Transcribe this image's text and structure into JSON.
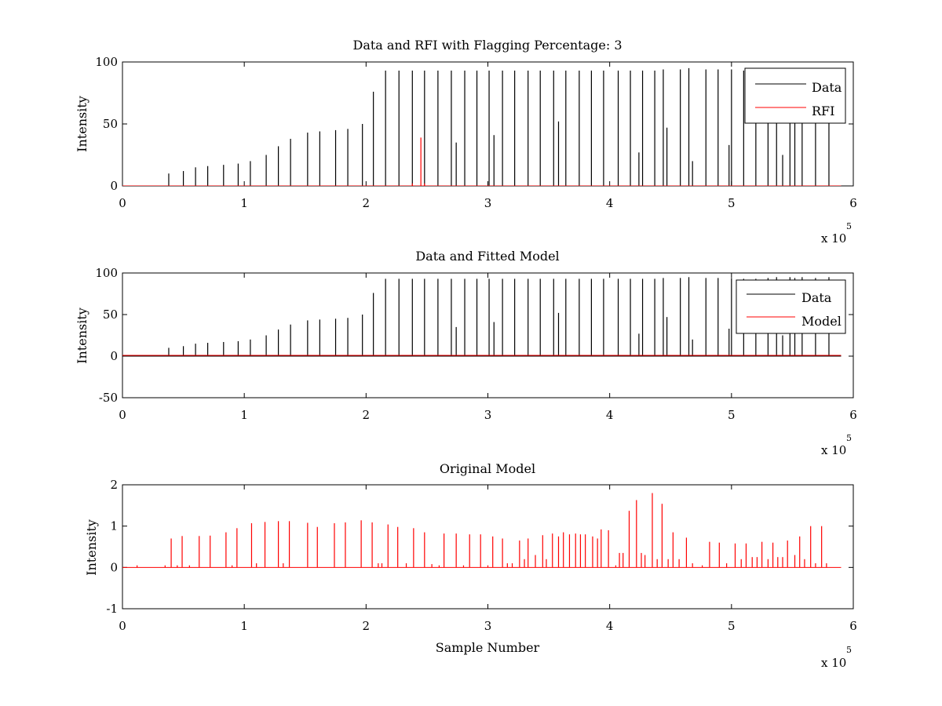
{
  "figure": {
    "background": "#ffffff",
    "panels": [
      "top",
      "middle",
      "bottom"
    ]
  },
  "colors": {
    "data": "#000000",
    "rfi": "#ff0000",
    "model": "#ff0000",
    "original": "#ff0000"
  },
  "panels": {
    "top": {
      "title": "Data and RFI with Flagging Percentage: 3",
      "ylabel": "Intensity",
      "xlabel": "",
      "exponent_base": "x 10",
      "exponent_power": "5",
      "legend": [
        "Data",
        "RFI"
      ]
    },
    "middle": {
      "title": "Data and Fitted Model",
      "ylabel": "Intensity",
      "xlabel": "",
      "exponent_base": "x 10",
      "exponent_power": "5",
      "legend": [
        "Data",
        "Model"
      ]
    },
    "bottom": {
      "title": "Original Model",
      "ylabel": "Intensity",
      "xlabel": "Sample Number",
      "exponent_base": "x 10",
      "exponent_power": "5",
      "legend": []
    }
  },
  "chart_data": [
    {
      "type": "line",
      "title": "Data and RFI with Flagging Percentage: 3",
      "xlabel": "",
      "ylabel": "Intensity",
      "x_multiplier": "x 10^5",
      "xlim": [
        0,
        6
      ],
      "ylim": [
        0,
        100
      ],
      "xticks": [
        "0",
        "1",
        "2",
        "3",
        "4",
        "5",
        "6"
      ],
      "yticks": [
        "0",
        "50",
        "100"
      ],
      "legend": "top-right",
      "series": [
        {
          "name": "Data",
          "kind": "spikes",
          "baseline": 0,
          "x": [
            0.38,
            0.5,
            0.6,
            0.7,
            0.83,
            0.95,
            1.05,
            1.18,
            1.28,
            1.38,
            1.52,
            1.62,
            1.75,
            1.85,
            1.97,
            2.06,
            2.16,
            2.27,
            2.38,
            2.48,
            2.59,
            2.7,
            2.74,
            2.81,
            2.91,
            3.01,
            3.05,
            3.12,
            3.22,
            3.33,
            3.43,
            3.54,
            3.58,
            3.64,
            3.75,
            3.85,
            3.95,
            4.07,
            4.17,
            4.24,
            4.27,
            4.37,
            4.44,
            4.47,
            4.58,
            4.65,
            4.68,
            4.79,
            4.89,
            4.98,
            5.0,
            5.1,
            5.2,
            5.3,
            5.37,
            5.42,
            5.48,
            5.52,
            5.58,
            5.69,
            5.8
          ],
          "y": [
            10,
            12,
            15,
            16,
            17,
            18,
            20,
            25,
            32,
            38,
            43,
            44,
            45,
            46,
            50,
            76,
            93,
            93,
            93,
            93,
            93,
            93,
            35,
            93,
            93,
            93,
            41,
            93,
            93,
            93,
            93,
            93,
            52,
            93,
            93,
            93,
            93,
            93,
            93,
            27,
            93,
            93,
            94,
            47,
            94,
            95,
            20,
            94,
            94,
            33,
            94,
            93,
            93,
            94,
            95,
            25,
            95,
            94,
            95,
            94,
            95
          ]
        },
        {
          "name": "RFI",
          "kind": "spikes",
          "baseline": 0,
          "x": [
            2.38,
            2.45,
            2.48
          ],
          "y": [
            2,
            39,
            2
          ]
        }
      ]
    },
    {
      "type": "line",
      "title": "Data and Fitted Model",
      "xlabel": "",
      "ylabel": "Intensity",
      "x_multiplier": "x 10^5",
      "xlim": [
        0,
        6
      ],
      "ylim": [
        -50,
        100
      ],
      "xticks": [
        "0",
        "1",
        "2",
        "3",
        "4",
        "5",
        "6"
      ],
      "yticks": [
        "-50",
        "0",
        "50",
        "100"
      ],
      "legend": "top-right",
      "series": [
        {
          "name": "Data",
          "kind": "spikes",
          "baseline": 0,
          "x": [
            0.38,
            0.5,
            0.6,
            0.7,
            0.83,
            0.95,
            1.05,
            1.18,
            1.28,
            1.38,
            1.52,
            1.62,
            1.75,
            1.85,
            1.97,
            2.06,
            2.16,
            2.27,
            2.38,
            2.48,
            2.59,
            2.7,
            2.74,
            2.81,
            2.91,
            3.01,
            3.05,
            3.12,
            3.22,
            3.33,
            3.43,
            3.54,
            3.58,
            3.64,
            3.75,
            3.85,
            3.95,
            4.07,
            4.17,
            4.24,
            4.27,
            4.37,
            4.44,
            4.47,
            4.58,
            4.65,
            4.68,
            4.79,
            4.89,
            4.98,
            5.0,
            5.1,
            5.2,
            5.3,
            5.37,
            5.42,
            5.48,
            5.52,
            5.58,
            5.69,
            5.8
          ],
          "y": [
            10,
            12,
            15,
            16,
            17,
            18,
            20,
            25,
            32,
            38,
            43,
            44,
            45,
            46,
            50,
            76,
            93,
            93,
            93,
            93,
            93,
            93,
            35,
            93,
            93,
            93,
            41,
            93,
            93,
            93,
            93,
            93,
            52,
            93,
            93,
            93,
            93,
            93,
            93,
            27,
            93,
            93,
            94,
            47,
            94,
            95,
            20,
            94,
            94,
            33,
            94,
            93,
            93,
            94,
            95,
            25,
            95,
            94,
            95,
            94,
            95
          ]
        },
        {
          "name": "Model",
          "kind": "line",
          "x": [
            0,
            5.9
          ],
          "y": [
            1,
            1
          ]
        }
      ]
    },
    {
      "type": "line",
      "title": "Original Model",
      "xlabel": "Sample Number",
      "ylabel": "Intensity",
      "x_multiplier": "x 10^5",
      "xlim": [
        0,
        6
      ],
      "ylim": [
        -1,
        2
      ],
      "xticks": [
        "0",
        "1",
        "2",
        "3",
        "4",
        "5",
        "6"
      ],
      "yticks": [
        "-1",
        "0",
        "1",
        "2"
      ],
      "legend": "none",
      "series": [
        {
          "name": "",
          "kind": "spikes",
          "baseline": 0,
          "x": [
            0.12,
            0.35,
            0.4,
            0.45,
            0.49,
            0.55,
            0.63,
            0.72,
            0.85,
            0.9,
            0.94,
            1.06,
            1.1,
            1.17,
            1.28,
            1.32,
            1.37,
            1.52,
            1.6,
            1.74,
            1.83,
            1.96,
            2.05,
            2.1,
            2.13,
            2.18,
            2.26,
            2.33,
            2.39,
            2.48,
            2.54,
            2.6,
            2.64,
            2.74,
            2.8,
            2.85,
            2.94,
            3.0,
            3.04,
            3.12,
            3.16,
            3.2,
            3.26,
            3.3,
            3.33,
            3.39,
            3.45,
            3.48,
            3.53,
            3.58,
            3.62,
            3.67,
            3.72,
            3.76,
            3.8,
            3.86,
            3.9,
            3.93,
            3.99,
            4.05,
            4.08,
            4.11,
            4.16,
            4.22,
            4.26,
            4.29,
            4.35,
            4.39,
            4.43,
            4.48,
            4.52,
            4.57,
            4.63,
            4.68,
            4.76,
            4.82,
            4.9,
            4.96,
            5.03,
            5.08,
            5.12,
            5.17,
            5.21,
            5.25,
            5.3,
            5.34,
            5.38,
            5.42,
            5.46,
            5.52,
            5.56,
            5.6,
            5.65,
            5.69,
            5.74,
            5.78
          ],
          "y": [
            0.05,
            0.05,
            0.7,
            0.05,
            0.76,
            0.05,
            0.76,
            0.77,
            0.85,
            0.05,
            0.95,
            1.07,
            0.1,
            1.1,
            1.12,
            0.1,
            1.12,
            1.08,
            0.98,
            1.07,
            1.09,
            1.14,
            1.09,
            0.1,
            0.1,
            1.04,
            0.98,
            0.1,
            0.95,
            0.85,
            0.08,
            0.05,
            0.82,
            0.82,
            0.05,
            0.8,
            0.8,
            0.05,
            0.75,
            0.7,
            0.1,
            0.1,
            0.65,
            0.2,
            0.7,
            0.3,
            0.78,
            0.2,
            0.82,
            0.75,
            0.85,
            0.8,
            0.82,
            0.8,
            0.8,
            0.75,
            0.7,
            0.92,
            0.9,
            0.05,
            0.35,
            0.35,
            1.37,
            1.63,
            0.35,
            0.3,
            1.8,
            0.2,
            1.54,
            0.2,
            0.85,
            0.2,
            0.72,
            0.1,
            0.05,
            0.62,
            0.6,
            0.1,
            0.58,
            0.2,
            0.58,
            0.25,
            0.25,
            0.62,
            0.2,
            0.6,
            0.25,
            0.25,
            0.65,
            0.3,
            0.75,
            0.2,
            1.0,
            0.1,
            1.0,
            0.1
          ]
        }
      ]
    }
  ]
}
